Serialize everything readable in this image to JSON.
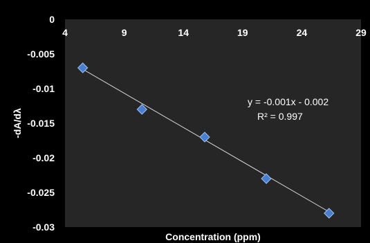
{
  "chart_data": {
    "type": "scatter",
    "title": "",
    "xlabel": "Concentration (ppm)",
    "ylabel": "-dA/dλ",
    "xlim": [
      4,
      29
    ],
    "ylim": [
      -0.03,
      0
    ],
    "x_ticks": [
      "4",
      "9",
      "14",
      "19",
      "24",
      "29"
    ],
    "y_ticks": [
      "0",
      "-0.005",
      "-0.01",
      "-0.015",
      "-0.02",
      "-0.025",
      "-0.03"
    ],
    "x_tick_values": [
      4,
      9,
      14,
      19,
      24,
      29
    ],
    "y_tick_values": [
      0,
      -0.005,
      -0.01,
      -0.015,
      -0.02,
      -0.025,
      -0.03
    ],
    "grid": false,
    "series": [
      {
        "x": [
          5.5,
          10.5,
          15.8,
          21,
          26.3
        ],
        "y": [
          -0.007,
          -0.013,
          -0.017,
          -0.023,
          -0.028
        ],
        "marker": "diamond",
        "color": "#4a7fcf"
      }
    ],
    "trendline": {
      "slope": -0.001,
      "intercept": -0.002,
      "from": [
        5.5,
        -0.0072
      ],
      "to": [
        26.3,
        -0.0278
      ],
      "color": "#d9d9d9"
    },
    "annotations": {
      "equation": "y = -0.001x - 0.002",
      "r_squared": "R² = 0.997"
    },
    "background": "#000000",
    "plot_area_color": "#262626"
  }
}
